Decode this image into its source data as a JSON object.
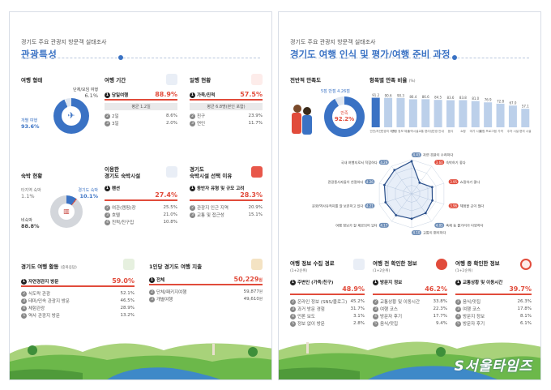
{
  "page1": {
    "kicker": "경기도 주요 관광지 방문객 실태조사",
    "title": "관광특성",
    "travel_type": {
      "title": "여행 형태",
      "group": {
        "label": "단체/모임 여행",
        "value": "6.1%"
      },
      "individual": {
        "label": "개별 여행",
        "value": "93.6%"
      },
      "chart": {
        "individual": 93.6,
        "group": 6.1
      }
    },
    "duration": {
      "title": "여행 기간",
      "top": {
        "num": "1",
        "label": "당일여행",
        "value": "88.9%"
      },
      "avg": "평균 1.2일",
      "rows": [
        {
          "num": "2",
          "label": "2일",
          "value": "8.6%"
        },
        {
          "num": "3",
          "label": "3일",
          "value": "2.0%"
        }
      ]
    },
    "companion": {
      "title": "일행 현황",
      "top": {
        "num": "1",
        "label": "가족/친척",
        "value": "57.5%"
      },
      "avg": "평균 6.8명(본인 포함)",
      "rows": [
        {
          "num": "2",
          "label": "친구",
          "value": "23.9%"
        },
        {
          "num": "3",
          "label": "연인",
          "value": "11.7%"
        }
      ]
    },
    "stay": {
      "title": "숙박 현황",
      "other": {
        "label": "타지역 숙박",
        "value": "1.1%"
      },
      "gyeonggi": {
        "label": "경기도 숙박",
        "value": "10.1%"
      },
      "none": {
        "label": "비숙박",
        "value": "88.8%"
      },
      "chart": {
        "none": 88.8,
        "gyeonggi": 10.1,
        "other": 1.1
      }
    },
    "lodging": {
      "title1": "이용한",
      "title2": "경기도 숙박시설",
      "top": {
        "num": "1",
        "label": "펜션",
        "value": "27.4%"
      },
      "rows": [
        {
          "num": "2",
          "label": "여관(캠핑)장",
          "value": "25.5%"
        },
        {
          "num": "3",
          "label": "호텔",
          "value": "21.0%"
        },
        {
          "num": "4",
          "label": "친척/친구집",
          "value": "10.8%"
        }
      ]
    },
    "reason": {
      "title1": "경기도",
      "title2": "숙박시설 선택 이유",
      "top": {
        "num": "1",
        "label": "동반자 유형 및 규모 고려",
        "value": "28.3%"
      },
      "rows": [
        {
          "num": "2",
          "label": "관광지 인근 지역",
          "value": "20.9%"
        },
        {
          "num": "3",
          "label": "교통 및 접근성",
          "value": "15.1%"
        }
      ]
    },
    "activity": {
      "title": "경기도 여행 활동",
      "sub": "(중복응답)",
      "top": {
        "num": "1",
        "label": "자연경관지 방문",
        "value": "59.0%"
      },
      "rows": [
        {
          "num": "2",
          "label": "식도락 관광",
          "value": "52.1%"
        },
        {
          "num": "3",
          "label": "테마/민속 관광지 방문",
          "value": "46.5%"
        },
        {
          "num": "4",
          "label": "체험관광",
          "value": "28.9%"
        },
        {
          "num": "5",
          "label": "역사 관광지 방문",
          "value": "13.2%"
        }
      ]
    },
    "spending": {
      "title": "1인당 경기도 여행 지출",
      "top": {
        "num": "1",
        "label": "전체",
        "value": "50,229",
        "unit": "원"
      },
      "rows": [
        {
          "num": "2",
          "label": "단체/패키지여행",
          "value": "59,877",
          "unit": "원"
        },
        {
          "num": "3",
          "label": "개별여행",
          "value": "49,610",
          "unit": "원"
        }
      ]
    }
  },
  "page2": {
    "kicker": "경기도 주요 관광지 방문객 실태조사",
    "title": "경기도 여행 인식 및 평가/여행 준비 과정",
    "overall": {
      "title": "전반적 만족도",
      "score": "5점 만점 4.26점",
      "center_label": "만족",
      "center_value": "92.2%",
      "chart": {
        "satisfied": 92.2
      }
    },
    "item_sat": {
      "title": "항목별 만족 비율",
      "unit": "(%)",
      "values": [
        "91.2",
        "90.6",
        "90.3",
        "86.4",
        "86.6",
        "84.5",
        "83.6",
        "83.8",
        "81.0",
        "76.9",
        "72.8",
        "67.0",
        "57.1"
      ],
      "labels": [
        "안전/치안",
        "관광지 매력",
        "관광 정보 제공",
        "숙박시설",
        "교통 편리성",
        "관광 안내",
        "음식",
        "쇼핑",
        "여가 시설",
        "체험 프로그램",
        "가격",
        "주차 시설",
        "편의 시설"
      ],
      "chart": {
        "values": [
          91.2,
          90.6,
          90.3,
          86.4,
          86.6,
          84.5,
          83.6,
          83.8,
          81.0,
          76.9,
          72.8,
          67.0,
          57.1
        ]
      }
    },
    "radar": {
      "items": [
        {
          "label": "자연 경관이 수려하다",
          "value": "4.43"
        },
        {
          "label": "숙박하기 좋다",
          "value": "3.60"
        },
        {
          "label": "쇼핑하기 좋다",
          "value": "3.95"
        },
        {
          "label": "체험할 곳이 많다",
          "value": "3.96"
        },
        {
          "label": "축제 등 볼거리가 다양하다",
          "value": "4.05"
        },
        {
          "label": "교통이 편리하다",
          "value": "4.10"
        },
        {
          "label": "여행 정보가 잘 제공되어 있다",
          "value": "4.17"
        },
        {
          "label": "문화/역사유적지를 잘 보존하고 있다",
          "value": "4.21"
        },
        {
          "label": "관광종사자들이 친절하다",
          "value": "4.26"
        },
        {
          "label": "국내 여행지로서 적합하다",
          "value": "4.29"
        }
      ],
      "chart": {
        "values": [
          4.43,
          3.6,
          3.95,
          3.96,
          4.05,
          4.1,
          4.17,
          4.21,
          4.26,
          4.29
        ],
        "range": [
          3.0,
          4.5
        ]
      }
    },
    "info_source": {
      "title": "여행 정보 수집 경로",
      "sub": "(1+2순위)",
      "top": {
        "num": "1",
        "label": "주변인 (가족/친구)",
        "value": "48.9%"
      },
      "rows": [
        {
          "num": "2",
          "label": "온라인 정보 (SNS/블로그)",
          "value": "45.2%"
        },
        {
          "num": "3",
          "label": "과거 방문 경험",
          "value": "31.7%"
        },
        {
          "num": "4",
          "label": "언론 보도",
          "value": "3.1%"
        },
        {
          "num": "5",
          "label": "정보 없이 방문",
          "value": "2.8%"
        }
      ]
    },
    "pre_check": {
      "title": "여행 전 확인한 정보",
      "sub": "(1+2순위)",
      "top": {
        "num": "1",
        "label": "방문지 정보",
        "value": "46.2%"
      },
      "rows": [
        {
          "num": "2",
          "label": "교통상황 및 이동시간",
          "value": "33.8%"
        },
        {
          "num": "3",
          "label": "여행 코스",
          "value": "22.3%"
        },
        {
          "num": "4",
          "label": "방문자 후기",
          "value": "17.7%"
        },
        {
          "num": "5",
          "label": "음식/맛집",
          "value": "9.4%"
        }
      ]
    },
    "during_check": {
      "title": "여행 중 확인한 정보",
      "sub": "(1+2순위)",
      "top": {
        "num": "1",
        "label": "교통상황 및 이동시간",
        "value": "39.7%"
      },
      "rows": [
        {
          "num": "2",
          "label": "음식/맛집",
          "value": "26.3%"
        },
        {
          "num": "3",
          "label": "여행 코스",
          "value": "17.8%"
        },
        {
          "num": "4",
          "label": "방문지 정보",
          "value": "8.1%"
        },
        {
          "num": "5",
          "label": "방문자 후기",
          "value": "6.1%"
        }
      ]
    },
    "watermark": "S서울타임즈"
  }
}
